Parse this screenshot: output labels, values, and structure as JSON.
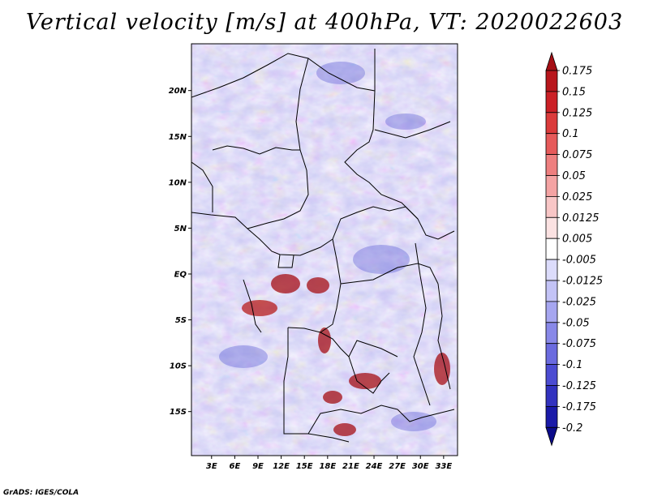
{
  "title": "Vertical velocity [m/s] at 400hPa, VT: 2020022603",
  "credit": "GrADS: IGES/COLA",
  "map": {
    "region": "Central Africa",
    "lat_labels": [
      "20N",
      "15N",
      "10N",
      "5N",
      "EQ",
      "5S",
      "10S",
      "15S"
    ],
    "lat_values": [
      20,
      15,
      10,
      5,
      0,
      -5,
      -10,
      -15
    ],
    "lon_labels": [
      "3E",
      "6E",
      "9E",
      "12E",
      "15E",
      "18E",
      "21E",
      "24E",
      "27E",
      "30E",
      "33E"
    ],
    "lon_values": [
      3,
      6,
      9,
      12,
      15,
      18,
      21,
      24,
      27,
      30,
      33
    ],
    "lon_range": [
      0.4,
      34.8
    ],
    "lat_range": [
      -19.8,
      25.1
    ]
  },
  "colorbar": {
    "labels": [
      "0.175",
      "0.15",
      "0.125",
      "0.1",
      "0.075",
      "0.05",
      "0.025",
      "0.0125",
      "0.005",
      "-0.005",
      "-0.0125",
      "-0.025",
      "-0.05",
      "-0.075",
      "-0.1",
      "-0.125",
      "-0.175",
      "-0.2"
    ],
    "colors": [
      "#a50f15",
      "#b8161c",
      "#cb2026",
      "#db3b3b",
      "#e65a5a",
      "#ee7f7f",
      "#f4a3a3",
      "#f8c6c6",
      "#fbe2e2",
      "#ffffff",
      "#dcdcfb",
      "#c3c3f6",
      "#a6a6f0",
      "#8888e8",
      "#6b6bdf",
      "#4c4cd2",
      "#3232bf",
      "#1a1aa8",
      "#0b0b8a"
    ]
  },
  "colors": {
    "background": "#ffffff",
    "border": "#000000"
  }
}
